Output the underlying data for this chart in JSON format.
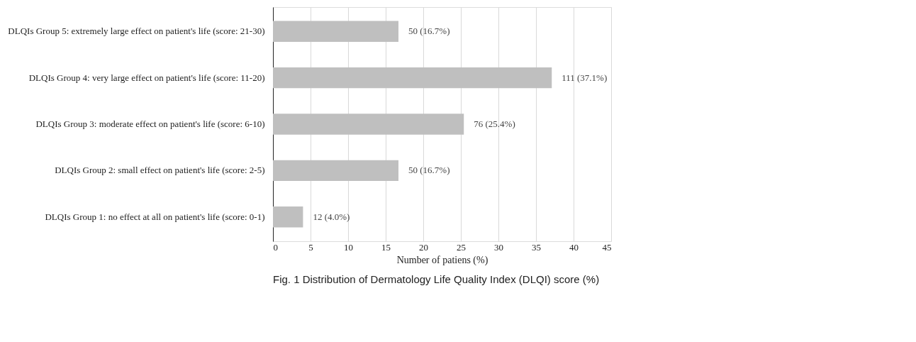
{
  "chart_data": {
    "type": "bar",
    "orientation": "horizontal",
    "xlabel": "Number of patiens (%)",
    "categories": [
      "DLQIs Group 5: extremely large effect on patient's life (score: 21-30)",
      "DLQIs Group 4: very large effect on patient's life (score: 11-20)",
      "DLQIs Group 3: moderate effect on patient's life (score: 6-10)",
      "DLQIs Group 2: small effect on patient's life (score: 2-5)",
      "DLQIs Group 1: no effect at all on patient's life (score: 0-1)"
    ],
    "values": [
      16.7,
      37.1,
      25.4,
      16.7,
      4.0
    ],
    "value_labels": [
      "50 (16.7%)",
      "111 (37.1%)",
      "76 (25.4%)",
      "50 (16.7%)",
      "12 (4.0%)"
    ],
    "color": "#bfbfbf",
    "xlim": [
      0,
      45
    ],
    "xticks": [
      0,
      5,
      10,
      15,
      20,
      25,
      30,
      35,
      40,
      45
    ],
    "grid": "x",
    "annotations": [
      "Fig. 1 Distribution of Dermatology Life Quality Index (DLQI) score (%)"
    ]
  }
}
